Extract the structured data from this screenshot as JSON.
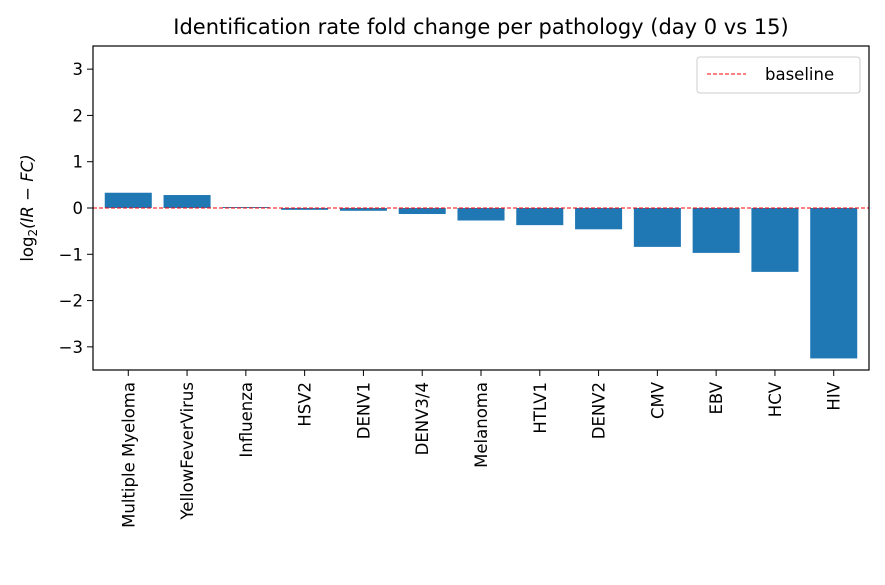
{
  "chart_data": {
    "type": "bar",
    "title": "Identification rate fold change per pathology (day 0 vs 15)",
    "xlabel": "",
    "ylabel": {
      "prefix": "log",
      "subscript": "2",
      "expression": "(IR − FC)"
    },
    "categories": [
      "Multiple Myeloma",
      "YellowFeverVirus",
      "Influenza",
      "HSV2",
      "DENV1",
      "DENV3/4",
      "Melanoma",
      "HTLV1",
      "DENV2",
      "CMV",
      "EBV",
      "HCV",
      "HIV"
    ],
    "values": [
      0.33,
      0.28,
      0.02,
      -0.04,
      -0.06,
      -0.13,
      -0.27,
      -0.37,
      -0.46,
      -0.84,
      -0.97,
      -1.38,
      -3.25
    ],
    "ylim": [
      -3.5,
      3.5
    ],
    "yticks": [
      3,
      2,
      1,
      0,
      -1,
      -2,
      -3
    ],
    "ytick_labels": [
      "3",
      "2",
      "1",
      "0",
      "−1",
      "−2",
      "−3"
    ],
    "bar_color": "#1f77b4",
    "baseline": {
      "value": 0,
      "label": "baseline",
      "color": "#ff0000",
      "style": "dashed"
    },
    "legend": {
      "position": "top-right",
      "entries": [
        "baseline"
      ]
    },
    "grid": false
  }
}
